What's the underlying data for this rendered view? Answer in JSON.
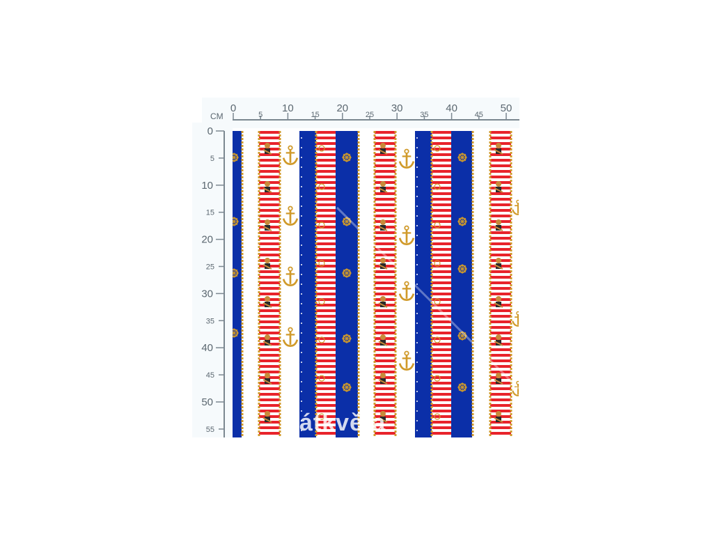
{
  "ruler": {
    "unit": "CM",
    "top_ticks": [
      "0",
      "5",
      "10",
      "15",
      "20",
      "25",
      "30",
      "35",
      "40",
      "45",
      "50"
    ],
    "left_ticks": [
      "0",
      "5",
      "10",
      "15",
      "20",
      "25",
      "30",
      "35",
      "40",
      "45",
      "50",
      "55"
    ]
  },
  "watermark": {
    "text": "átkvěta"
  },
  "fabric": {
    "colors": {
      "blue": "#0b2fa8",
      "red": "#e8232b",
      "white": "#ffffff",
      "gold": "#d09a2a"
    },
    "motifs": [
      "anchor-icon",
      "ship-wheel-icon",
      "rope-border",
      "sailor-bear-icon"
    ]
  }
}
